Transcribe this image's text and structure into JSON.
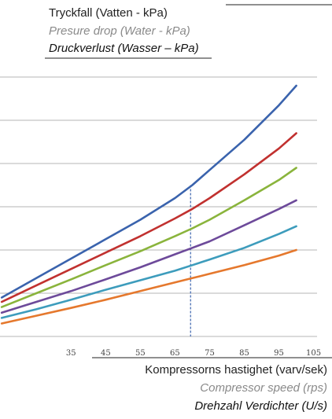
{
  "chart_data": {
    "type": "line",
    "ylabel": [
      "Tryckfall (Vatten - kPa)",
      "Presure drop (Water - kPa)",
      "Druckverlust (Wasser – kPa)"
    ],
    "xlabel": [
      "Kompressorns hastighet (varv/sek)",
      "Compressor speed (rps)",
      "Drehzahl Verdichter (U/s)"
    ],
    "x_ticks": [
      "35",
      "45",
      "55",
      "65",
      "75",
      "85",
      "95",
      "105"
    ],
    "xlim": [
      14.5,
      106
    ],
    "ylim": [
      0,
      6
    ],
    "grid": true,
    "reference_line_x": 69.5,
    "x": [
      15,
      25,
      35,
      45,
      55,
      65,
      70,
      75,
      85,
      95,
      100
    ],
    "series": [
      {
        "color": "#3a63ad",
        "values": [
          0.9,
          1.35,
          1.8,
          2.25,
          2.7,
          3.2,
          3.5,
          3.85,
          4.55,
          5.35,
          5.8
        ]
      },
      {
        "color": "#c1312f",
        "values": [
          0.8,
          1.18,
          1.56,
          1.94,
          2.32,
          2.73,
          2.95,
          3.2,
          3.75,
          4.35,
          4.7
        ]
      },
      {
        "color": "#8ab43c",
        "values": [
          0.68,
          1.0,
          1.32,
          1.65,
          1.97,
          2.32,
          2.5,
          2.7,
          3.15,
          3.62,
          3.9
        ]
      },
      {
        "color": "#6d4a9a",
        "values": [
          0.55,
          0.8,
          1.05,
          1.32,
          1.6,
          1.9,
          2.05,
          2.2,
          2.57,
          2.95,
          3.15
        ]
      },
      {
        "color": "#3d9cbc",
        "values": [
          0.43,
          0.63,
          0.85,
          1.08,
          1.3,
          1.52,
          1.65,
          1.78,
          2.05,
          2.37,
          2.55
        ]
      },
      {
        "color": "#e5782d",
        "values": [
          0.3,
          0.48,
          0.66,
          0.85,
          1.05,
          1.25,
          1.35,
          1.45,
          1.65,
          1.87,
          2.0
        ]
      }
    ]
  }
}
